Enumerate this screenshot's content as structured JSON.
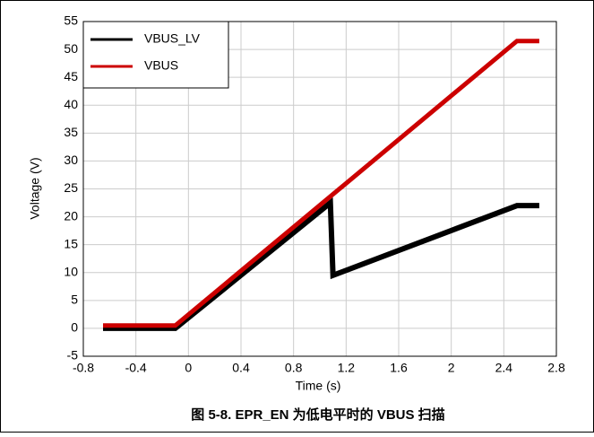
{
  "chart_data": {
    "type": "line",
    "caption": "图 5-8. EPR_EN 为低电平时的 VBUS 扫描",
    "xlabel": "Time (s)",
    "ylabel": "Voltage (V)",
    "xlim": [
      -0.8,
      2.8
    ],
    "xticks": [
      -0.8,
      -0.4,
      0,
      0.4,
      0.8,
      1.2,
      1.6,
      2,
      2.4,
      2.8
    ],
    "ylim": [
      -5,
      55
    ],
    "yticks": [
      -5,
      0,
      5,
      10,
      15,
      20,
      25,
      30,
      35,
      40,
      45,
      50,
      55
    ],
    "grid": true,
    "legend": "upper left",
    "series": [
      {
        "name": "VBUS_LV",
        "color": "#000000",
        "x": [
          -0.65,
          -0.1,
          1.08,
          1.1,
          2.5,
          2.67
        ],
        "values": [
          0,
          0,
          22.5,
          9.5,
          22,
          22
        ]
      },
      {
        "name": "VBUS",
        "color": "#cc0000",
        "x": [
          -0.65,
          -0.1,
          2.5,
          2.67
        ],
        "values": [
          0.5,
          0.5,
          51.5,
          51.5
        ]
      }
    ]
  }
}
